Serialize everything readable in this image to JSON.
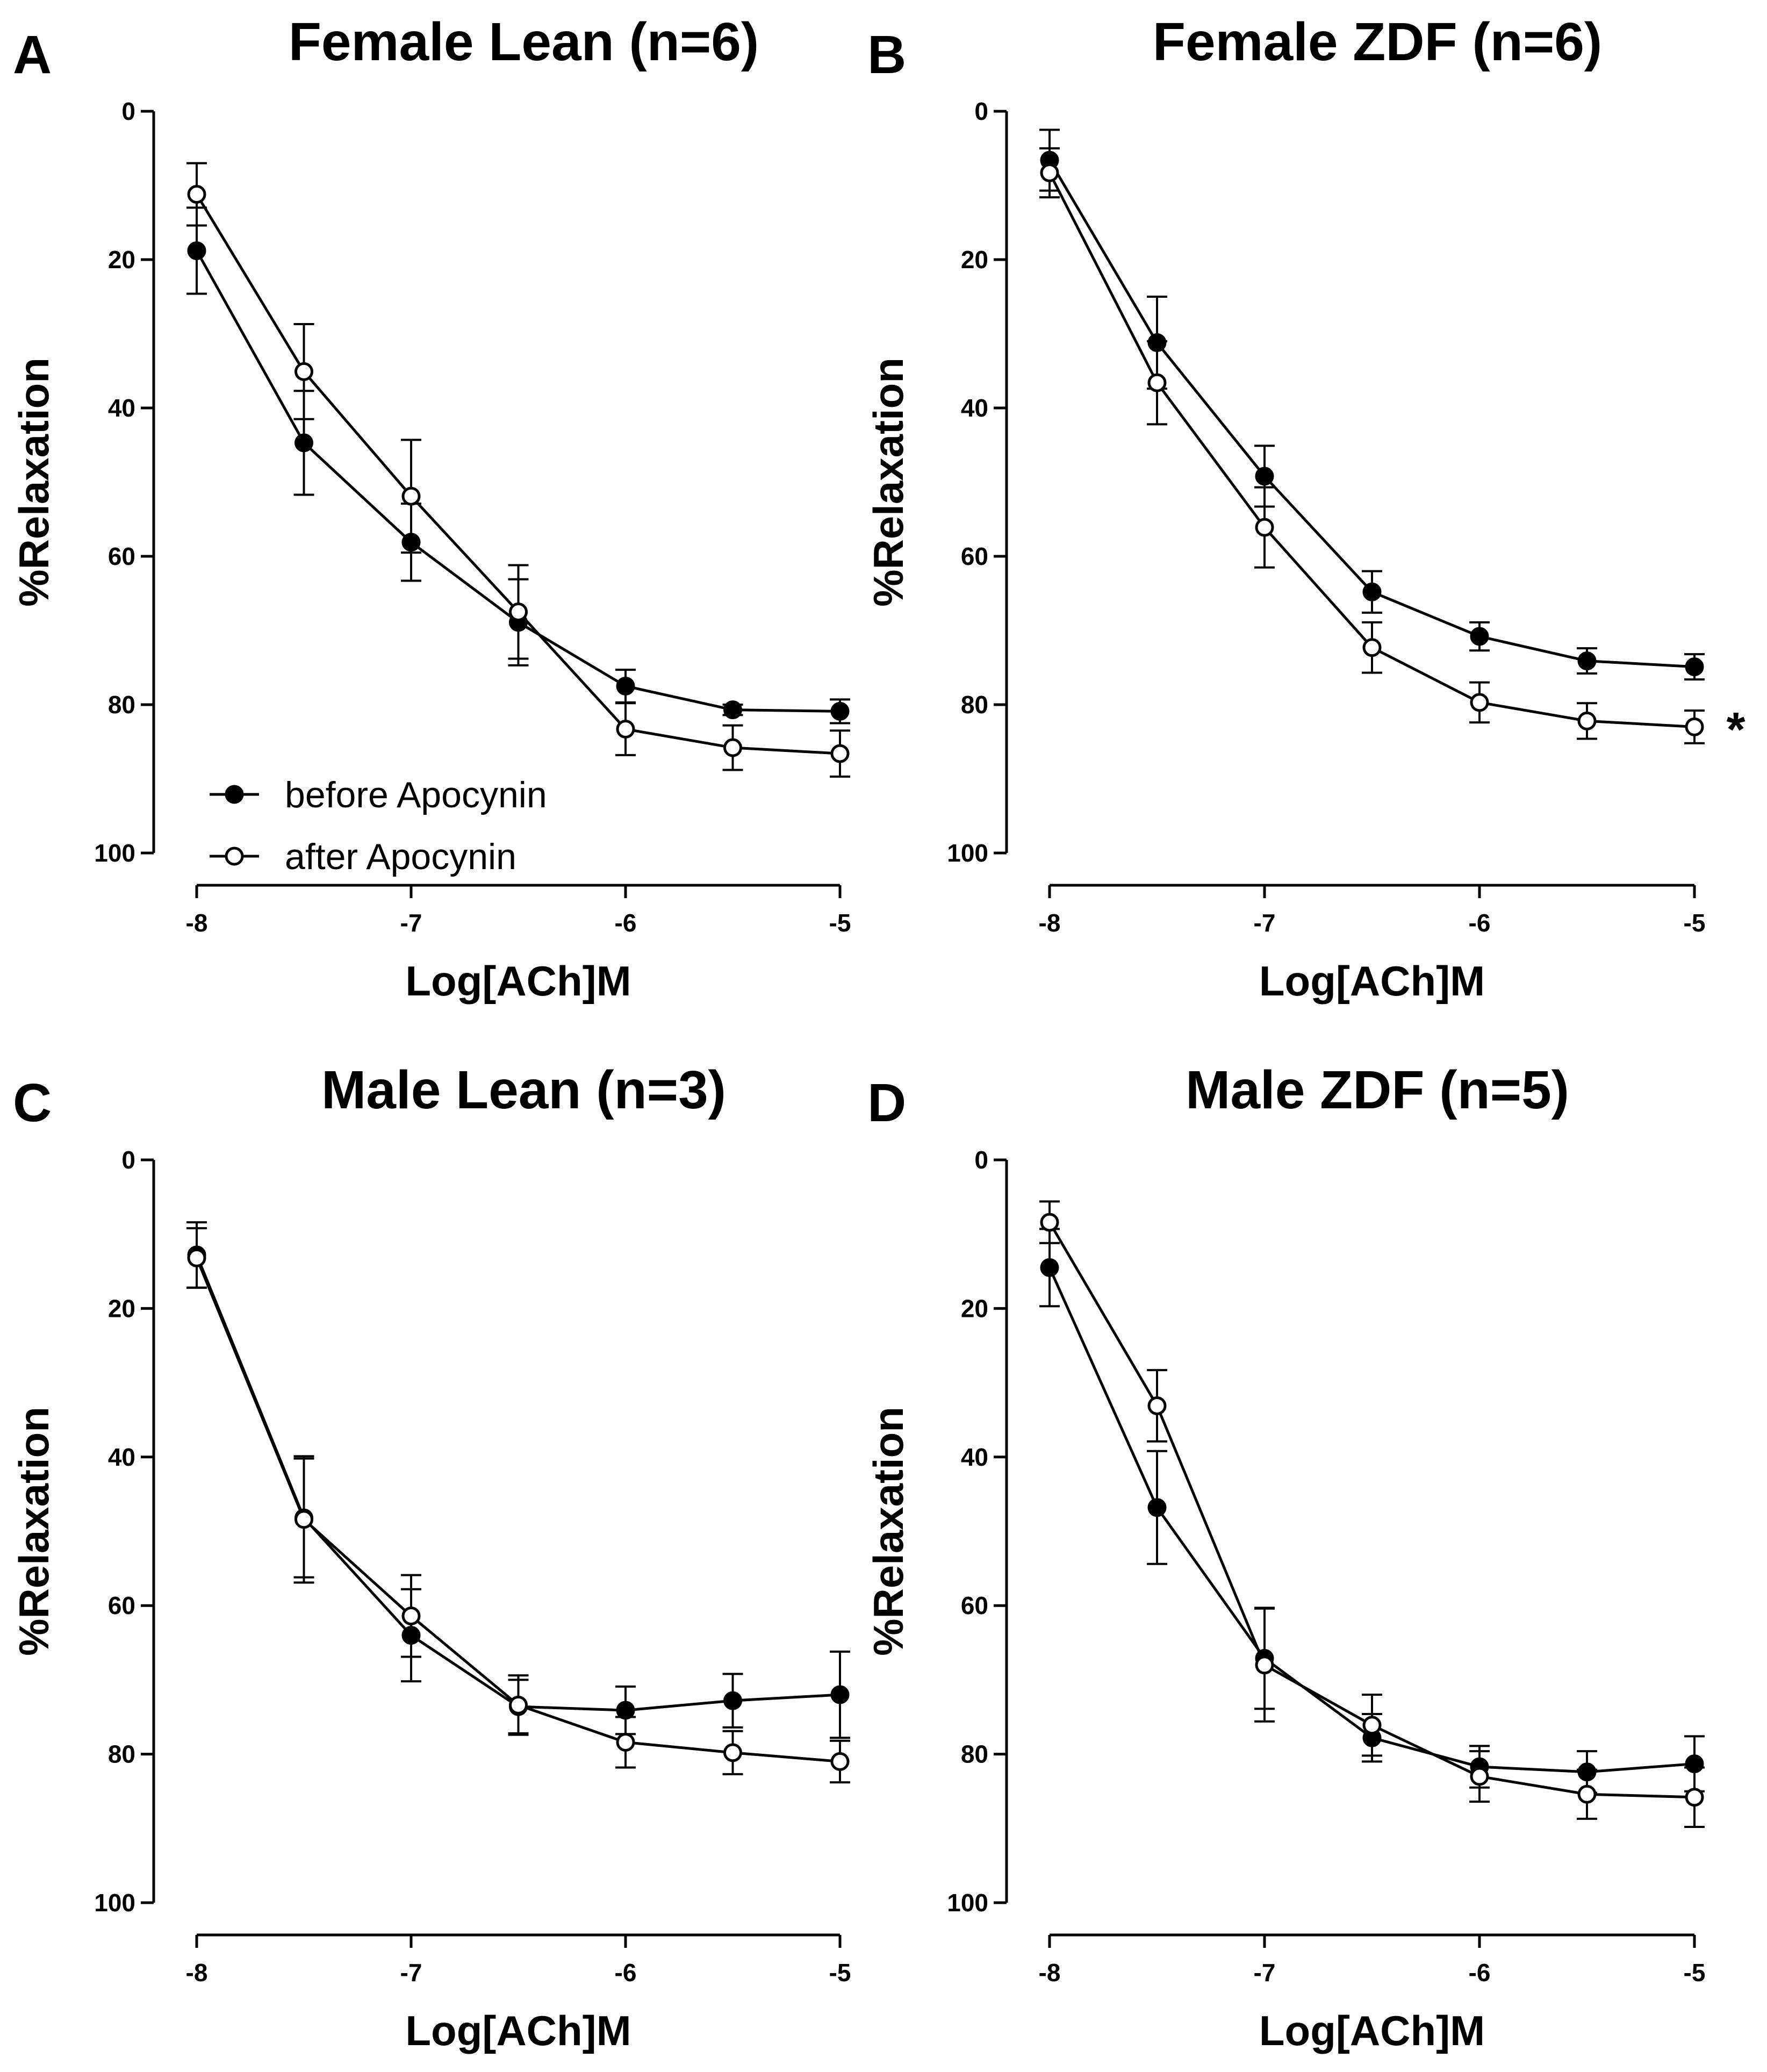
{
  "chart_data": [
    {
      "type": "line",
      "panel": "A",
      "title": "Female Lean (n=6)",
      "xlabel": "Log[ACh]M",
      "ylabel": "%Relaxation",
      "xlim": [
        -8,
        -5
      ],
      "ylim": [
        0,
        100
      ],
      "y_inverted": true,
      "xticks": [
        -8,
        -7,
        -6,
        -5
      ],
      "xtick_labels": [
        "-8",
        "-7",
        "-6",
        "-5"
      ],
      "yticks": [
        0,
        20,
        40,
        60,
        80,
        100
      ],
      "ytick_labels": [
        "0",
        "20",
        "40",
        "60",
        "80",
        "100"
      ],
      "x": [
        -8,
        -7.5,
        -7,
        -6.5,
        -6,
        -5.5,
        -5
      ],
      "legend": {
        "position": "bottom-left",
        "show": true
      },
      "annotation": "",
      "series": [
        {
          "name": "before Apocynin",
          "marker": "filled-circle",
          "values": [
            18.8,
            44.7,
            58.1,
            68.9,
            77.5,
            80.7,
            80.9
          ],
          "errors": [
            5.8,
            7.0,
            5.2,
            5.8,
            2.2,
            0.7,
            1.6
          ]
        },
        {
          "name": "after Apocynin",
          "marker": "open-circle",
          "values": [
            11.2,
            35.1,
            51.9,
            67.5,
            83.3,
            85.8,
            86.6
          ],
          "errors": [
            4.2,
            6.4,
            7.6,
            6.3,
            3.5,
            3.0,
            3.1
          ]
        }
      ]
    },
    {
      "type": "line",
      "panel": "B",
      "title": "Female ZDF (n=6)",
      "xlabel": "Log[ACh]M",
      "ylabel": "%Relaxation",
      "xlim": [
        -8,
        -5
      ],
      "ylim": [
        0,
        100
      ],
      "y_inverted": true,
      "xticks": [
        -8,
        -7,
        -6,
        -5
      ],
      "xtick_labels": [
        "-8",
        "-7",
        "-6",
        "-5"
      ],
      "yticks": [
        0,
        20,
        40,
        60,
        80,
        100
      ],
      "ytick_labels": [
        "0",
        "20",
        "40",
        "60",
        "80",
        "100"
      ],
      "x": [
        -8,
        -7.5,
        -7,
        -6.5,
        -6,
        -5.5,
        -5
      ],
      "legend": {
        "position": "none",
        "show": false
      },
      "annotation": "*",
      "series": [
        {
          "name": "before Apocynin",
          "marker": "filled-circle",
          "values": [
            6.6,
            31.2,
            49.2,
            64.8,
            70.8,
            74.1,
            74.9
          ],
          "errors": [
            4.1,
            6.2,
            4.1,
            2.8,
            1.9,
            1.7,
            1.7
          ]
        },
        {
          "name": "after Apocynin",
          "marker": "open-circle",
          "values": [
            8.3,
            36.6,
            56.1,
            72.3,
            79.7,
            82.2,
            83.0
          ],
          "errors": [
            3.3,
            5.6,
            5.4,
            3.4,
            2.7,
            2.4,
            2.2
          ]
        }
      ]
    },
    {
      "type": "line",
      "panel": "C",
      "title": "Male Lean (n=3)",
      "xlabel": "Log[ACh]M",
      "ylabel": "%Relaxation",
      "xlim": [
        -8,
        -5
      ],
      "ylim": [
        0,
        100
      ],
      "y_inverted": true,
      "xticks": [
        -8,
        -7,
        -6,
        -5
      ],
      "xtick_labels": [
        "-8",
        "-7",
        "-6",
        "-5"
      ],
      "yticks": [
        0,
        20,
        40,
        60,
        80,
        100
      ],
      "ytick_labels": [
        "0",
        "20",
        "40",
        "60",
        "80",
        "100"
      ],
      "x": [
        -8,
        -7.5,
        -7,
        -6.5,
        -6,
        -5.5,
        -5
      ],
      "legend": {
        "position": "none",
        "show": false
      },
      "annotation": "",
      "series": [
        {
          "name": "before Apocynin",
          "marker": "filled-circle",
          "values": [
            12.8,
            48.2,
            64.0,
            73.6,
            74.1,
            72.8,
            72.0
          ],
          "errors": [
            4.4,
            8.0,
            6.2,
            3.6,
            3.2,
            3.6,
            5.8
          ]
        },
        {
          "name": "after Apocynin",
          "marker": "open-circle",
          "values": [
            13.2,
            48.4,
            61.4,
            73.4,
            78.4,
            79.8,
            81.0
          ],
          "errors": [
            4.0,
            8.5,
            5.5,
            4.0,
            3.4,
            2.9,
            2.8
          ]
        }
      ]
    },
    {
      "type": "line",
      "panel": "D",
      "title": "Male ZDF (n=5)",
      "xlabel": "Log[ACh]M",
      "ylabel": "%Relaxation",
      "xlim": [
        -8,
        -5
      ],
      "ylim": [
        0,
        100
      ],
      "y_inverted": true,
      "xticks": [
        -8,
        -7,
        -6,
        -5
      ],
      "xtick_labels": [
        "-8",
        "-7",
        "-6",
        "-5"
      ],
      "yticks": [
        0,
        20,
        40,
        60,
        80,
        100
      ],
      "ytick_labels": [
        "0",
        "20",
        "40",
        "60",
        "80",
        "100"
      ],
      "x": [
        -8,
        -7.5,
        -7,
        -6.5,
        -6,
        -5.5,
        -5
      ],
      "legend": {
        "position": "none",
        "show": false
      },
      "annotation": "",
      "series": [
        {
          "name": "before Apocynin",
          "marker": "filled-circle",
          "values": [
            14.5,
            46.8,
            67.1,
            77.8,
            81.7,
            82.4,
            81.3
          ],
          "errors": [
            5.2,
            7.6,
            6.8,
            3.2,
            2.8,
            2.8,
            3.7
          ]
        },
        {
          "name": "after Apocynin",
          "marker": "open-circle",
          "values": [
            8.4,
            33.1,
            68.0,
            76.1,
            83.0,
            85.4,
            85.8
          ],
          "errors": [
            2.8,
            4.8,
            7.6,
            4.1,
            3.4,
            3.3,
            4.0
          ]
        }
      ]
    }
  ]
}
